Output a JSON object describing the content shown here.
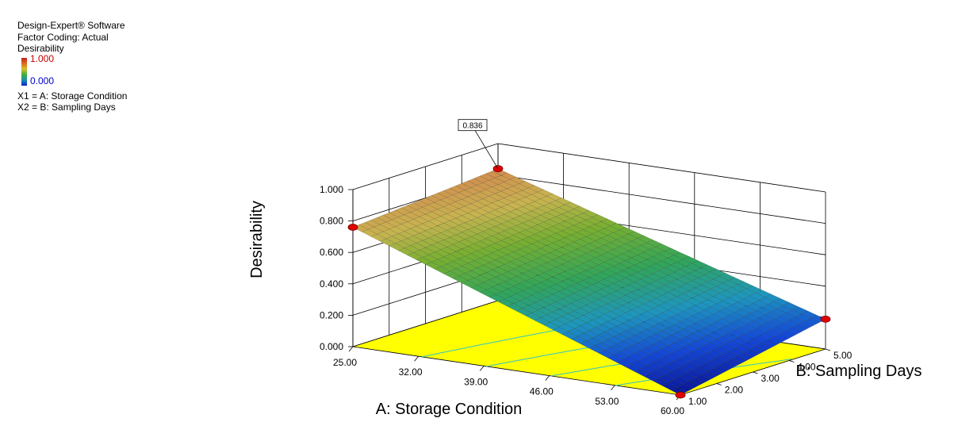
{
  "legend": {
    "software": "Design-Expert® Software",
    "coding": "Factor Coding: Actual",
    "response": "Desirability",
    "scale_high": "1.000",
    "scale_low": "0.000",
    "x1": "X1 = A: Storage Condition",
    "x2": "X2 = B: Sampling Days"
  },
  "chart_data": {
    "type": "surface3d",
    "title": "",
    "xlabel": "A: Storage Condition",
    "ylabel": "B: Sampling Days",
    "zlabel": "Desirability",
    "x_ticks": [
      "25.00",
      "32.00",
      "39.00",
      "46.00",
      "53.00",
      "60.00"
    ],
    "y_ticks": [
      "1.00",
      "2.00",
      "3.00",
      "4.00",
      "5.00"
    ],
    "z_ticks": [
      "0.000",
      "0.200",
      "0.400",
      "0.600",
      "0.800",
      "1.000"
    ],
    "xlim": [
      25,
      60
    ],
    "ylim": [
      1,
      5
    ],
    "zlim": [
      0,
      1
    ],
    "flag_label": "0.836",
    "corner_points": [
      {
        "x": 25,
        "y": 1,
        "z": 0.76
      },
      {
        "x": 25,
        "y": 5,
        "z": 0.84
      },
      {
        "x": 60,
        "y": 1,
        "z": 0.0
      },
      {
        "x": 60,
        "y": 5,
        "z": 0.19
      }
    ],
    "colors": {
      "floor": "#ffff00",
      "contour": "#33c4c4",
      "marker": "#e00000"
    }
  }
}
